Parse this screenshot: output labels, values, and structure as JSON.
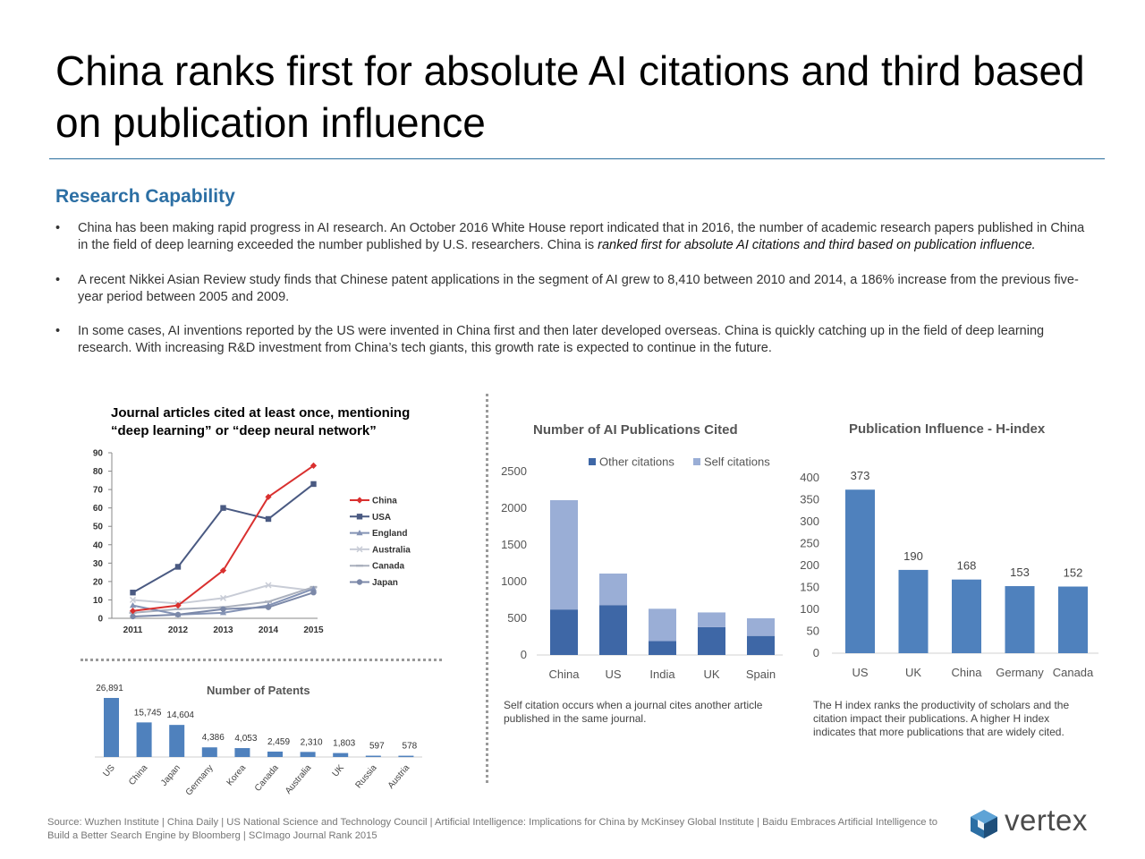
{
  "page": {
    "title": "China ranks first for absolute AI citations and third based on publication influence",
    "section_title": "Research Capability",
    "bullets": [
      {
        "plain": "China has been making rapid progress in AI research. An October 2016 White House report indicated that in 2016, the number of academic research papers published in China in the field of deep learning exceeded the number published by U.S. researchers. China is ",
        "emph": "ranked first for absolute AI citations and third based on publication influence."
      },
      {
        "plain": "A recent Nikkei Asian Review study finds that Chinese patent applications in the segment of AI grew to 8,410 between 2010 and 2014, a 186% increase from the previous five-year period between 2005 and 2009."
      },
      {
        "plain": "In some cases, AI inventions reported by the US were invented in China first and then later developed overseas. China is quickly catching up in the field of deep learning research. With increasing R&D investment from China’s tech giants, this growth rate is expected to continue in the future."
      }
    ],
    "bullet_glyph": "•",
    "note_publications": "Self citation occurs when a journal cites another article published in the same journal.",
    "note_hindex": "The H index ranks the productivity of scholars and the citation impact their publications.  A higher H index indicates that more publications that are widely cited.",
    "source": "Source: Wuzhen Institute | China Daily | US National Science and Technology Council | Artificial Intelligence: Implications for China by McKinsey Global Institute | Baidu Embraces Artificial Intelligence to Build a Better Search Engine by Bloomberg | SCImago Journal Rank 2015",
    "logo_text": "vertex",
    "logo_icon": "vertex-cube-icon"
  },
  "chart_data": [
    {
      "id": "journal",
      "type": "line",
      "title": "Journal articles cited at least once, mentioning “deep learning” or “deep neural network”",
      "x": [
        "2011",
        "2012",
        "2013",
        "2014",
        "2015"
      ],
      "ylim": [
        0,
        90
      ],
      "yticks": [
        0,
        10,
        20,
        30,
        40,
        50,
        60,
        70,
        80,
        90
      ],
      "grid": false,
      "legend": "right",
      "series": [
        {
          "name": "China",
          "values": [
            4,
            7,
            26,
            66,
            83
          ],
          "color": "#d9302f",
          "marker": "diamond"
        },
        {
          "name": "USA",
          "values": [
            14,
            28,
            60,
            54,
            73
          ],
          "color": "#4a5a82",
          "marker": "square"
        },
        {
          "name": "England",
          "values": [
            7,
            2,
            3,
            7,
            16
          ],
          "color": "#8493b5",
          "marker": "triangle"
        },
        {
          "name": "Australia",
          "values": [
            10,
            8,
            11,
            18,
            15
          ],
          "color": "#c8ccd6",
          "marker": "x"
        },
        {
          "name": "Canada",
          "values": [
            3,
            5,
            6,
            9,
            17
          ],
          "color": "#aab0bd",
          "marker": "dash"
        },
        {
          "name": "Japan",
          "values": [
            1,
            2,
            5,
            6,
            14
          ],
          "color": "#7b88a8",
          "marker": "circle"
        }
      ]
    },
    {
      "id": "patents",
      "type": "bar",
      "title": "Number of Patents",
      "categories": [
        "US",
        "China",
        "Japan",
        "Germany",
        "Korea",
        "Canada",
        "Australia",
        "UK",
        "Russia",
        "Austria"
      ],
      "values": [
        26891,
        15745,
        14604,
        4386,
        4053,
        2459,
        2310,
        1803,
        597,
        578
      ],
      "labels": [
        "26,891",
        "15,745",
        "14,604",
        "4,386",
        "4,053",
        "2,459",
        "2,310",
        "1,803",
        "597",
        "578"
      ],
      "ylim": [
        0,
        26891
      ],
      "color": "#4f81bd"
    },
    {
      "id": "publications",
      "type": "bar",
      "stacked": true,
      "title": "Number of AI Publications Cited",
      "categories": [
        "China",
        "US",
        "India",
        "UK",
        "Spain"
      ],
      "ylim": [
        0,
        2500
      ],
      "yticks": [
        0,
        500,
        1000,
        1500,
        2000,
        2500
      ],
      "legend": "top",
      "series": [
        {
          "name": "Other citations",
          "values": [
            620,
            680,
            190,
            380,
            260
          ],
          "color": "#3e67a6"
        },
        {
          "name": "Self citations",
          "values": [
            1490,
            430,
            440,
            200,
            240
          ],
          "color": "#9aaed6"
        }
      ]
    },
    {
      "id": "hindex",
      "type": "bar",
      "title": "Publication Influence - H-index",
      "categories": [
        "US",
        "UK",
        "China",
        "Germany",
        "Canada"
      ],
      "values": [
        373,
        190,
        168,
        153,
        152
      ],
      "labels": [
        "373",
        "190",
        "168",
        "153",
        "152"
      ],
      "ylim": [
        0,
        400
      ],
      "yticks": [
        0,
        50,
        100,
        150,
        200,
        250,
        300,
        350,
        400
      ],
      "color": "#4f81bd"
    }
  ]
}
